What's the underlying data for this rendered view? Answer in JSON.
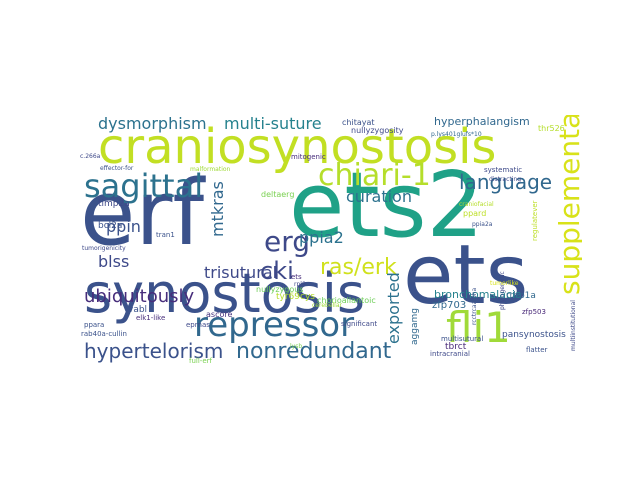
{
  "words": [
    {
      "text": "erf",
      "color": "#3b528b"
    },
    {
      "text": "ets2",
      "color": "#1fa187"
    },
    {
      "text": "ets",
      "color": "#3b528b"
    },
    {
      "text": "craniosynostosis",
      "color": "#c2df23"
    },
    {
      "text": "synostosis",
      "color": "#3b528b"
    },
    {
      "text": "sagittal",
      "color": "#2c728e"
    },
    {
      "text": "repressor",
      "color": "#31688e"
    },
    {
      "text": "fli1",
      "color": "#a0da39"
    },
    {
      "text": "chiari-1",
      "color": "#b5de2b"
    },
    {
      "text": "supplementary",
      "color": "#d8e219"
    },
    {
      "text": "erg",
      "color": "#3e4989"
    },
    {
      "text": "hypertelorism",
      "color": "#3b528b"
    },
    {
      "text": "nonredundant",
      "color": "#31688e"
    },
    {
      "text": "ras/erk",
      "color": "#d0e11c"
    },
    {
      "text": "ubiquitously",
      "color": "#472d7b"
    },
    {
      "text": "language",
      "color": "#31688e"
    },
    {
      "text": "dysmorphism",
      "color": "#2c728e"
    },
    {
      "text": "multi-suture",
      "color": "#26828e"
    },
    {
      "text": "cki",
      "color": "#3e4989"
    },
    {
      "text": "curation",
      "color": "#2c728e"
    },
    {
      "text": "exported",
      "color": "#2c728e"
    },
    {
      "text": "blss",
      "color": "#3e4989"
    },
    {
      "text": "ppin",
      "color": "#3b528b"
    },
    {
      "text": "trisutural",
      "color": "#3e4989"
    },
    {
      "text": "mtkras",
      "color": "#31688e"
    },
    {
      "text": "ppia2",
      "color": "#2c728e"
    },
    {
      "text": "bronchomalacia",
      "color": "#26828e"
    },
    {
      "text": "hyperphalangism",
      "color": "#31688e"
    },
    {
      "text": "pansynostosis",
      "color": "#3b528b"
    },
    {
      "text": "zfp703",
      "color": "#31688e"
    },
    {
      "text": "tbrct",
      "color": "#482878"
    },
    {
      "text": "vabl",
      "color": "#3b528b"
    },
    {
      "text": "ascore",
      "color": "#46327e"
    },
    {
      "text": "tyr69cys",
      "color": "#b5de2b"
    },
    {
      "text": "nullyzygous",
      "color": "#6ece58"
    },
    {
      "text": "chitayat",
      "color": "#3b528b"
    },
    {
      "text": "nullyzygosity",
      "color": "#3e4989"
    },
    {
      "text": "bcl2a",
      "color": "#3b528b"
    },
    {
      "text": "timp2a",
      "color": "#3e4989"
    },
    {
      "text": "rrbp1a",
      "color": "#31688e"
    },
    {
      "text": "aggamg",
      "color": "#31688e"
    },
    {
      "text": "mitogenic",
      "color": "#472d7b"
    },
    {
      "text": "deltaerg",
      "color": "#7ad151"
    },
    {
      "text": "tran1",
      "color": "#3b528b"
    },
    {
      "text": "thr526",
      "color": "#b5de2b"
    },
    {
      "text": "regulatever",
      "color": "#bddf26"
    },
    {
      "text": "chorioallantoic",
      "color": "#6ece58"
    },
    {
      "text": "significant",
      "color": "#3e4989"
    },
    {
      "text": "intracranial",
      "color": "#3e4989"
    },
    {
      "text": "multisutural",
      "color": "#3b528b"
    },
    {
      "text": "flatter",
      "color": "#3b528b"
    },
    {
      "text": "zfp503",
      "color": "#482878"
    },
    {
      "text": "systematic",
      "color": "#3e4989"
    },
    {
      "text": "ppard",
      "color": "#bddf26"
    },
    {
      "text": "full-erf",
      "color": "#7ad151"
    },
    {
      "text": "eprnas",
      "color": "#3e4989"
    },
    {
      "text": "rab40a-cullin",
      "color": "#3b528b"
    },
    {
      "text": "elk1-like",
      "color": "#472d7b"
    },
    {
      "text": "ppara",
      "color": "#3b528b"
    },
    {
      "text": "effector-for",
      "color": "#3b528b"
    },
    {
      "text": "tumorigenicity",
      "color": "#3e4989"
    },
    {
      "text": "malformation",
      "color": "#a0da39"
    },
    {
      "text": "distracting",
      "color": "#3e4989"
    },
    {
      "text": "ppia2a",
      "color": "#3b528b"
    },
    {
      "text": "phylogenetic",
      "color": "#3e4989"
    },
    {
      "text": "multiinstitutional",
      "color": "#3e4989"
    },
    {
      "text": "rcctrcaalpha",
      "color": "#3b528b"
    },
    {
      "text": "craniofacial",
      "color": "#b5de2b"
    },
    {
      "text": "rpl8",
      "color": "#3e4989"
    },
    {
      "text": "cerebellar",
      "color": "#a0da39"
    },
    {
      "text": "tumorlike",
      "color": "#d8e219"
    },
    {
      "text": "c.266a",
      "color": "#3e4989"
    },
    {
      "text": "p.lys401glufs*10",
      "color": "#31688e"
    },
    {
      "text": "lysb",
      "color": "#7ad151"
    },
    {
      "text": "ets",
      "color": "#472d7b"
    }
  ]
}
